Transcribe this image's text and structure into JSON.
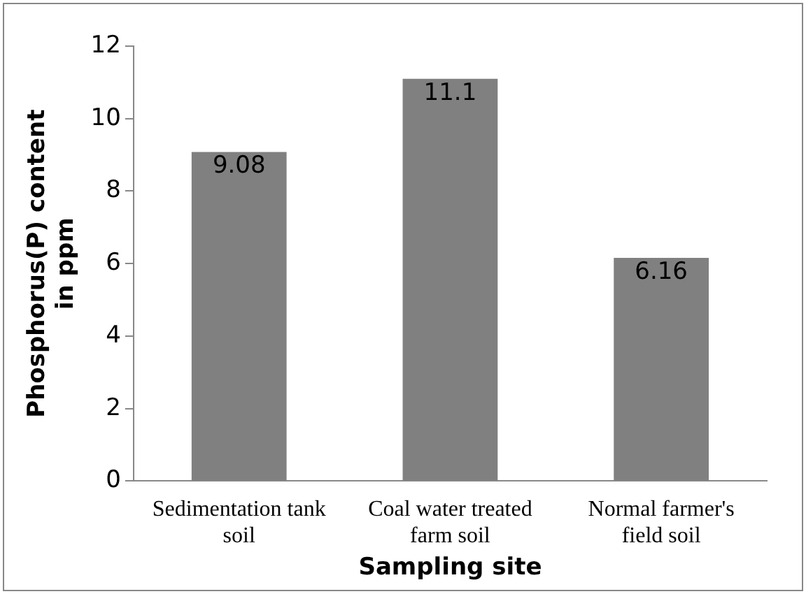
{
  "chart_data": {
    "type": "bar",
    "xlabel": "Sampling site",
    "ylabel": "Phosphorus(P) content in ppm",
    "categories": [
      "Sedimentation tank soil",
      "Coal water treated farm soil",
      "Normal farmer's field soil"
    ],
    "values": [
      9.08,
      11.1,
      6.16
    ],
    "color": "#808080",
    "ylim": [
      0,
      12
    ],
    "yticks": [
      0,
      2,
      4,
      6,
      8,
      10,
      12
    ],
    "grid": false,
    "data_labels": true,
    "legend": false
  }
}
